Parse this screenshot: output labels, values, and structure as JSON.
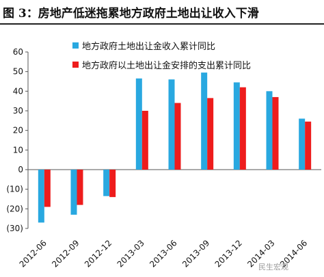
{
  "figure": {
    "title": "图 3：房地产低迷拖累地方政府土地出让收入下滑",
    "watermark": "民生宏观"
  },
  "chart_data": {
    "type": "bar",
    "categories": [
      "2012-06",
      "2012-09",
      "2012-12",
      "2013-03",
      "2013-06",
      "2013-09",
      "2013-12",
      "2014-03",
      "2014-06"
    ],
    "series": [
      {
        "name": "地方政府土地出让金收入累计同比",
        "color": "#29a8e0",
        "values": [
          -27,
          -23,
          -13.5,
          46.5,
          46,
          49.5,
          44.5,
          40,
          26
        ]
      },
      {
        "name": "地方政府以土地出让金安排的支出累计同比",
        "color": "#ee1c1c",
        "values": [
          -19,
          -18,
          -14,
          30,
          34,
          36.5,
          42,
          37,
          24.5
        ]
      }
    ],
    "yticks": [
      "60",
      "50",
      "40",
      "30",
      "20",
      "10",
      "0",
      "(10)",
      "(20)",
      "(30)"
    ],
    "ylim": [
      -30,
      60
    ],
    "grid": false,
    "legend": "top-left"
  }
}
